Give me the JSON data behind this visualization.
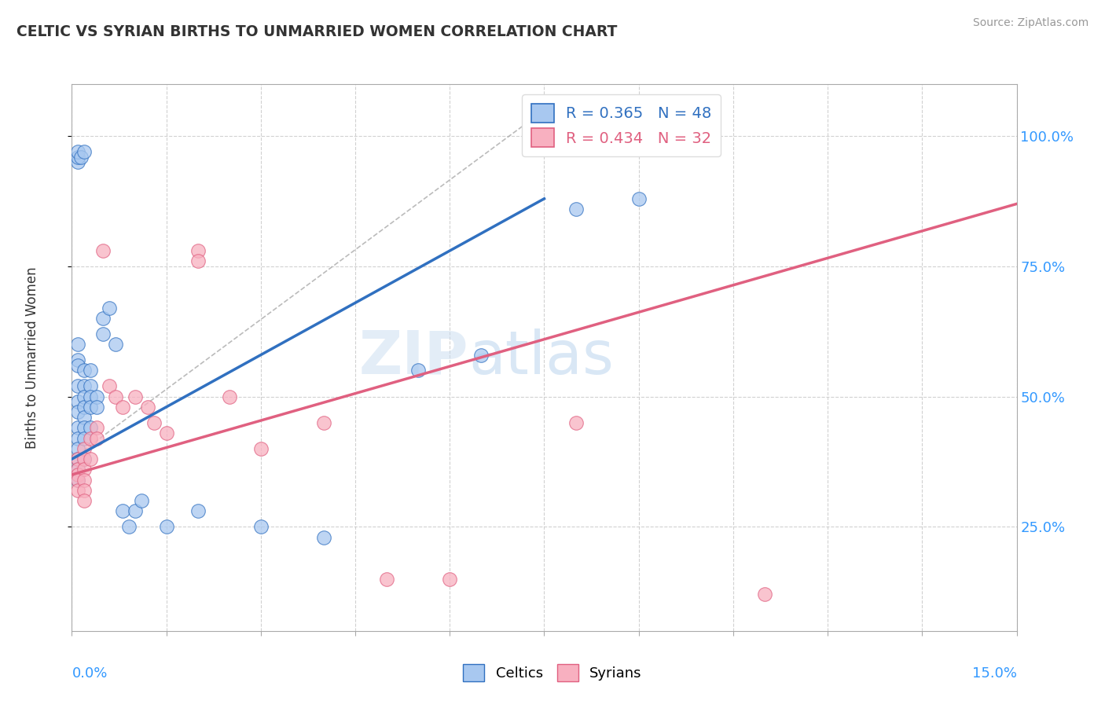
{
  "title": "CELTIC VS SYRIAN BIRTHS TO UNMARRIED WOMEN CORRELATION CHART",
  "source": "Source: ZipAtlas.com",
  "ylabel": "Births to Unmarried Women",
  "y_ticks": [
    0.25,
    0.5,
    0.75,
    1.0
  ],
  "y_tick_labels": [
    "25.0%",
    "50.0%",
    "75.0%",
    "100.0%"
  ],
  "x_range": [
    0.0,
    0.15
  ],
  "y_range": [
    0.05,
    1.1
  ],
  "legend_celtic": "R = 0.365   N = 48",
  "legend_syrian": "R = 0.434   N = 32",
  "celtic_color": "#A8C8F0",
  "syrian_color": "#F8B0C0",
  "celtic_line_color": "#3070C0",
  "syrian_line_color": "#E06080",
  "watermark_zip": "ZIP",
  "watermark_atlas": "atlas",
  "background_color": "#FFFFFF",
  "grid_color": "#CCCCCC",
  "celtic_points": [
    [
      0.001,
      0.95
    ],
    [
      0.001,
      0.96
    ],
    [
      0.001,
      0.97
    ],
    [
      0.0015,
      0.96
    ],
    [
      0.002,
      0.97
    ],
    [
      0.001,
      0.6
    ],
    [
      0.001,
      0.57
    ],
    [
      0.001,
      0.56
    ],
    [
      0.001,
      0.52
    ],
    [
      0.001,
      0.49
    ],
    [
      0.001,
      0.47
    ],
    [
      0.001,
      0.44
    ],
    [
      0.001,
      0.42
    ],
    [
      0.001,
      0.4
    ],
    [
      0.001,
      0.38
    ],
    [
      0.001,
      0.36
    ],
    [
      0.001,
      0.34
    ],
    [
      0.002,
      0.55
    ],
    [
      0.002,
      0.52
    ],
    [
      0.002,
      0.5
    ],
    [
      0.002,
      0.48
    ],
    [
      0.002,
      0.46
    ],
    [
      0.002,
      0.44
    ],
    [
      0.002,
      0.42
    ],
    [
      0.002,
      0.38
    ],
    [
      0.003,
      0.55
    ],
    [
      0.003,
      0.52
    ],
    [
      0.003,
      0.5
    ],
    [
      0.003,
      0.48
    ],
    [
      0.003,
      0.44
    ],
    [
      0.004,
      0.5
    ],
    [
      0.004,
      0.48
    ],
    [
      0.005,
      0.65
    ],
    [
      0.005,
      0.62
    ],
    [
      0.006,
      0.67
    ],
    [
      0.007,
      0.6
    ],
    [
      0.008,
      0.28
    ],
    [
      0.009,
      0.25
    ],
    [
      0.01,
      0.28
    ],
    [
      0.011,
      0.3
    ],
    [
      0.015,
      0.25
    ],
    [
      0.02,
      0.28
    ],
    [
      0.03,
      0.25
    ],
    [
      0.04,
      0.23
    ],
    [
      0.055,
      0.55
    ],
    [
      0.065,
      0.58
    ],
    [
      0.08,
      0.86
    ],
    [
      0.09,
      0.88
    ]
  ],
  "syrian_points": [
    [
      0.001,
      0.38
    ],
    [
      0.001,
      0.36
    ],
    [
      0.001,
      0.35
    ],
    [
      0.001,
      0.34
    ],
    [
      0.001,
      0.32
    ],
    [
      0.002,
      0.4
    ],
    [
      0.002,
      0.38
    ],
    [
      0.002,
      0.36
    ],
    [
      0.002,
      0.34
    ],
    [
      0.002,
      0.32
    ],
    [
      0.002,
      0.3
    ],
    [
      0.003,
      0.42
    ],
    [
      0.003,
      0.38
    ],
    [
      0.004,
      0.44
    ],
    [
      0.004,
      0.42
    ],
    [
      0.005,
      0.78
    ],
    [
      0.006,
      0.52
    ],
    [
      0.007,
      0.5
    ],
    [
      0.008,
      0.48
    ],
    [
      0.01,
      0.5
    ],
    [
      0.012,
      0.48
    ],
    [
      0.013,
      0.45
    ],
    [
      0.015,
      0.43
    ],
    [
      0.02,
      0.78
    ],
    [
      0.02,
      0.76
    ],
    [
      0.025,
      0.5
    ],
    [
      0.03,
      0.4
    ],
    [
      0.04,
      0.45
    ],
    [
      0.05,
      0.15
    ],
    [
      0.06,
      0.15
    ],
    [
      0.08,
      0.45
    ],
    [
      0.11,
      0.12
    ]
  ],
  "ref_line": [
    [
      0.0,
      0.38
    ],
    [
      0.075,
      1.05
    ]
  ],
  "blue_line": [
    [
      0.0,
      0.38
    ],
    [
      0.075,
      0.88
    ]
  ],
  "pink_line": [
    [
      0.0,
      0.35
    ],
    [
      0.15,
      0.87
    ]
  ]
}
